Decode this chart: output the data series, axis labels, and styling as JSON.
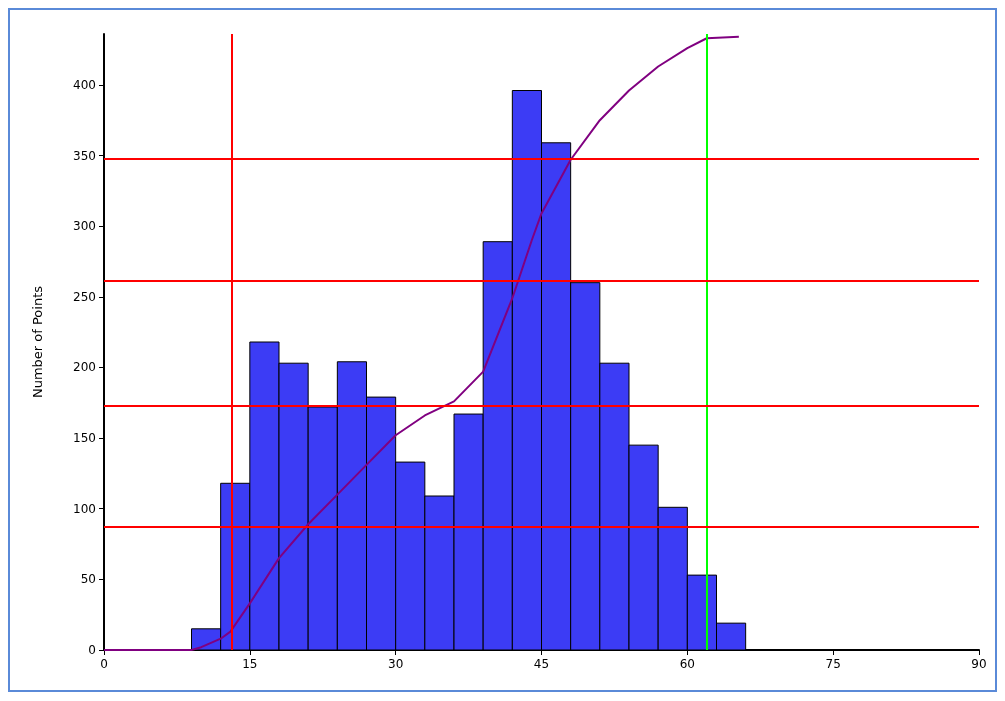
{
  "chart_data": {
    "type": "histogram",
    "ylabel": "Number of Points",
    "bins": [
      9,
      12,
      15,
      18,
      21,
      24,
      27,
      30,
      33,
      36,
      39,
      42,
      45,
      48,
      51,
      54,
      57,
      60,
      63,
      66
    ],
    "values": [
      15,
      118,
      218,
      203,
      172,
      204,
      179,
      133,
      109,
      167,
      289,
      396,
      359,
      260,
      203,
      145,
      101,
      53,
      19
    ],
    "color": "#3c3cf5",
    "series": [
      {
        "type": "line",
        "color": "#800080",
        "x": [
          0,
          9,
          10,
          12,
          13,
          15,
          18,
          21,
          24,
          27,
          30,
          33,
          36,
          39,
          42,
          44,
          45,
          48,
          51,
          54,
          57,
          60,
          62,
          65.3
        ],
        "values": [
          0,
          0,
          2,
          8,
          13,
          33,
          65,
          89,
          110,
          131,
          152,
          166,
          176,
          197,
          249,
          290,
          309,
          347,
          375,
          396,
          413,
          426,
          433,
          434
        ]
      }
    ],
    "xlim": [
      0,
      90
    ],
    "xticks": [
      0,
      15,
      30,
      45,
      60,
      75,
      90
    ],
    "ylim": [
      0,
      436
    ],
    "yticks": [
      0,
      50,
      100,
      150,
      200,
      250,
      300,
      350,
      400
    ],
    "marker": "none",
    "line_style": "solid",
    "ref_lines": [
      {
        "axis": "x",
        "value": 13.1,
        "color": "#ff0000"
      },
      {
        "axis": "x",
        "value": 62,
        "color": "#00ff00"
      },
      {
        "axis": "y",
        "value": 87,
        "color": "#ff0000"
      },
      {
        "axis": "y",
        "value": 173,
        "color": "#ff0000"
      },
      {
        "axis": "y",
        "value": 261,
        "color": "#ff0000"
      },
      {
        "axis": "y",
        "value": 348,
        "color": "#ff0000"
      }
    ]
  }
}
